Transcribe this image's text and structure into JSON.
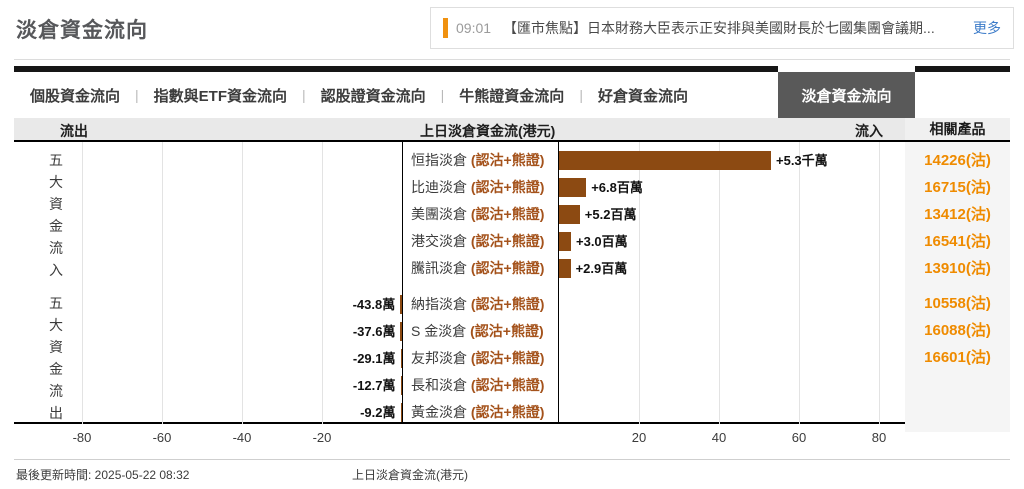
{
  "page": {
    "title": "淡倉資金流向"
  },
  "news": {
    "time": "09:01",
    "headline": "【匯市焦點】日本財務大臣表示正安排與美國財長於七國集團會議期...",
    "more_label": "更多"
  },
  "tabs": {
    "items": [
      "個股資金流向",
      "指數與ETF資金流向",
      "認股證資金流向",
      "牛熊證資金流向",
      "好倉資金流向"
    ],
    "active": "淡倉資金流向"
  },
  "header": {
    "outflow": "流出",
    "center_title": "上日淡倉資金流(港元)",
    "inflow": "流入",
    "related": "相關產品"
  },
  "footer": {
    "last_update": "最後更新時間: 2025-05-22 08:32",
    "axis_caption": "上日淡倉資金流(港元)"
  },
  "colors": {
    "bar": "#8c4a12",
    "label_suffix": "#a4521b",
    "product_link": "#ef8b00",
    "news_marker": "#f0910f",
    "more_link": "#3d7cc9"
  },
  "chart_data": {
    "type": "bar",
    "orientation": "horizontal",
    "title": "上日淡倉資金流(港元)",
    "unit": "百萬港元",
    "xlim": [
      -95,
      90
    ],
    "xticks": [
      -80,
      -60,
      -40,
      -20,
      20,
      40,
      60,
      80
    ],
    "grid": true,
    "group_labels": {
      "inflow": "五大資金流入",
      "outflow": "五大資金流出"
    },
    "rows": [
      {
        "group": "inflow",
        "name": "恒指淡倉",
        "suffix": "(認沽+熊證)",
        "value_mn": 53,
        "value_label": "+5.3千萬",
        "product": "14226(沽)"
      },
      {
        "group": "inflow",
        "name": "比迪淡倉",
        "suffix": "(認沽+熊證)",
        "value_mn": 6.8,
        "value_label": "+6.8百萬",
        "product": "16715(沽)"
      },
      {
        "group": "inflow",
        "name": "美團淡倉",
        "suffix": "(認沽+熊證)",
        "value_mn": 5.2,
        "value_label": "+5.2百萬",
        "product": "13412(沽)"
      },
      {
        "group": "inflow",
        "name": "港交淡倉",
        "suffix": "(認沽+熊證)",
        "value_mn": 3.0,
        "value_label": "+3.0百萬",
        "product": "16541(沽)"
      },
      {
        "group": "inflow",
        "name": "騰訊淡倉",
        "suffix": "(認沽+熊證)",
        "value_mn": 2.9,
        "value_label": "+2.9百萬",
        "product": "13910(沽)"
      },
      {
        "group": "outflow",
        "name": "納指淡倉",
        "suffix": "(認沽+熊證)",
        "value_mn": -0.438,
        "value_label": "-43.8萬",
        "product": "10558(沽)"
      },
      {
        "group": "outflow",
        "name": "S 金淡倉",
        "suffix": "(認沽+熊證)",
        "value_mn": -0.376,
        "value_label": "-37.6萬",
        "product": "16088(沽)"
      },
      {
        "group": "outflow",
        "name": "友邦淡倉",
        "suffix": "(認沽+熊證)",
        "value_mn": -0.291,
        "value_label": "-29.1萬",
        "product": "16601(沽)"
      },
      {
        "group": "outflow",
        "name": "長和淡倉",
        "suffix": "(認沽+熊證)",
        "value_mn": -0.127,
        "value_label": "-12.7萬",
        "product": null
      },
      {
        "group": "outflow",
        "name": "黃金淡倉",
        "suffix": "(認沽+熊證)",
        "value_mn": -0.092,
        "value_label": "-9.2萬",
        "product": null
      }
    ]
  }
}
